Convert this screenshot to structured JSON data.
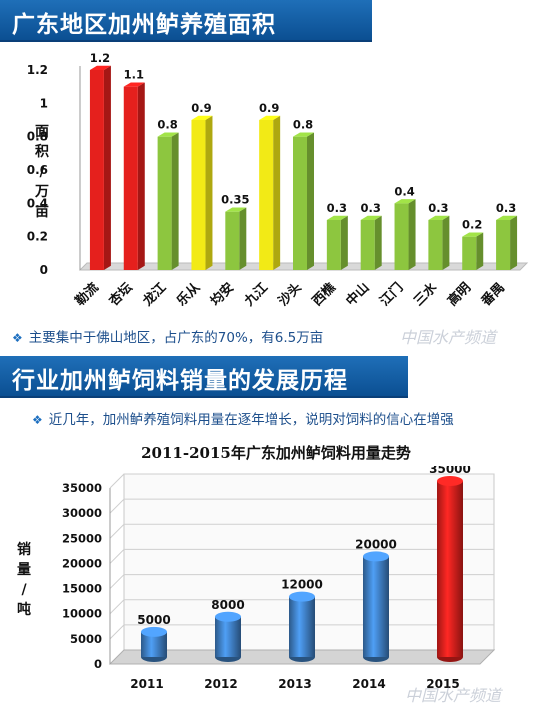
{
  "section1": {
    "title": "广东地区加州鲈养殖面积",
    "note": "主要集中于佛山地区，占广东的70%，有6.5万亩",
    "watermark": "中国水产频道"
  },
  "section2": {
    "title": "行业加州鲈饲料销量的发展历程",
    "note": "近几年，加州鲈养殖饲料用量在逐年增长，说明对饲料的信心在增强",
    "watermark": "中国水产频道"
  },
  "colors": {
    "red": "#e5201d",
    "yellow": "#f2ea16",
    "green": "#8dc63f",
    "blue": "#3f7fc4",
    "title_bar": "#0b4f92"
  },
  "chart_data": [
    {
      "type": "bar",
      "title": "",
      "ylabel_chars": [
        "面",
        "积",
        "/",
        "万",
        "亩"
      ],
      "categories": [
        "勒流",
        "杏坛",
        "龙江",
        "乐从",
        "均安",
        "九江",
        "沙头",
        "西樵",
        "中山",
        "江门",
        "三水",
        "高明",
        "番禺"
      ],
      "values": [
        1.2,
        1.1,
        0.8,
        0.9,
        0.35,
        0.9,
        0.8,
        0.3,
        0.3,
        0.4,
        0.3,
        0.2,
        0.3
      ],
      "value_labels": [
        "1.2",
        "1.1",
        "0.8",
        "0.9",
        "0.35",
        "0.9",
        "0.8",
        "0.3",
        "0.3",
        "0.4",
        "0.3",
        "0.2",
        "0.3"
      ],
      "bar_colors": [
        "red",
        "red",
        "green",
        "yellow",
        "green",
        "yellow",
        "green",
        "green",
        "green",
        "green",
        "green",
        "green",
        "green"
      ],
      "yticks": [
        "0",
        "0.2",
        "0.4",
        "0.6",
        "0.8",
        "1",
        "1.2"
      ],
      "ylim": [
        0,
        1.2
      ],
      "grid": false
    },
    {
      "type": "bar",
      "title": "2011-2015年广东加州鲈饲料用量走势",
      "ylabel_chars": [
        "销",
        "量",
        "/",
        "吨"
      ],
      "categories": [
        "2011",
        "2012",
        "2013",
        "2014",
        "2015"
      ],
      "values": [
        5000,
        8000,
        12000,
        20000,
        35000
      ],
      "value_labels": [
        "5000",
        "8000",
        "12000",
        "20000",
        "35000"
      ],
      "bar_colors": [
        "blue",
        "blue",
        "blue",
        "blue",
        "red"
      ],
      "yticks": [
        "0",
        "5000",
        "10000",
        "15000",
        "20000",
        "25000",
        "30000",
        "35000"
      ],
      "ylim": [
        0,
        35000
      ],
      "grid": true
    }
  ]
}
